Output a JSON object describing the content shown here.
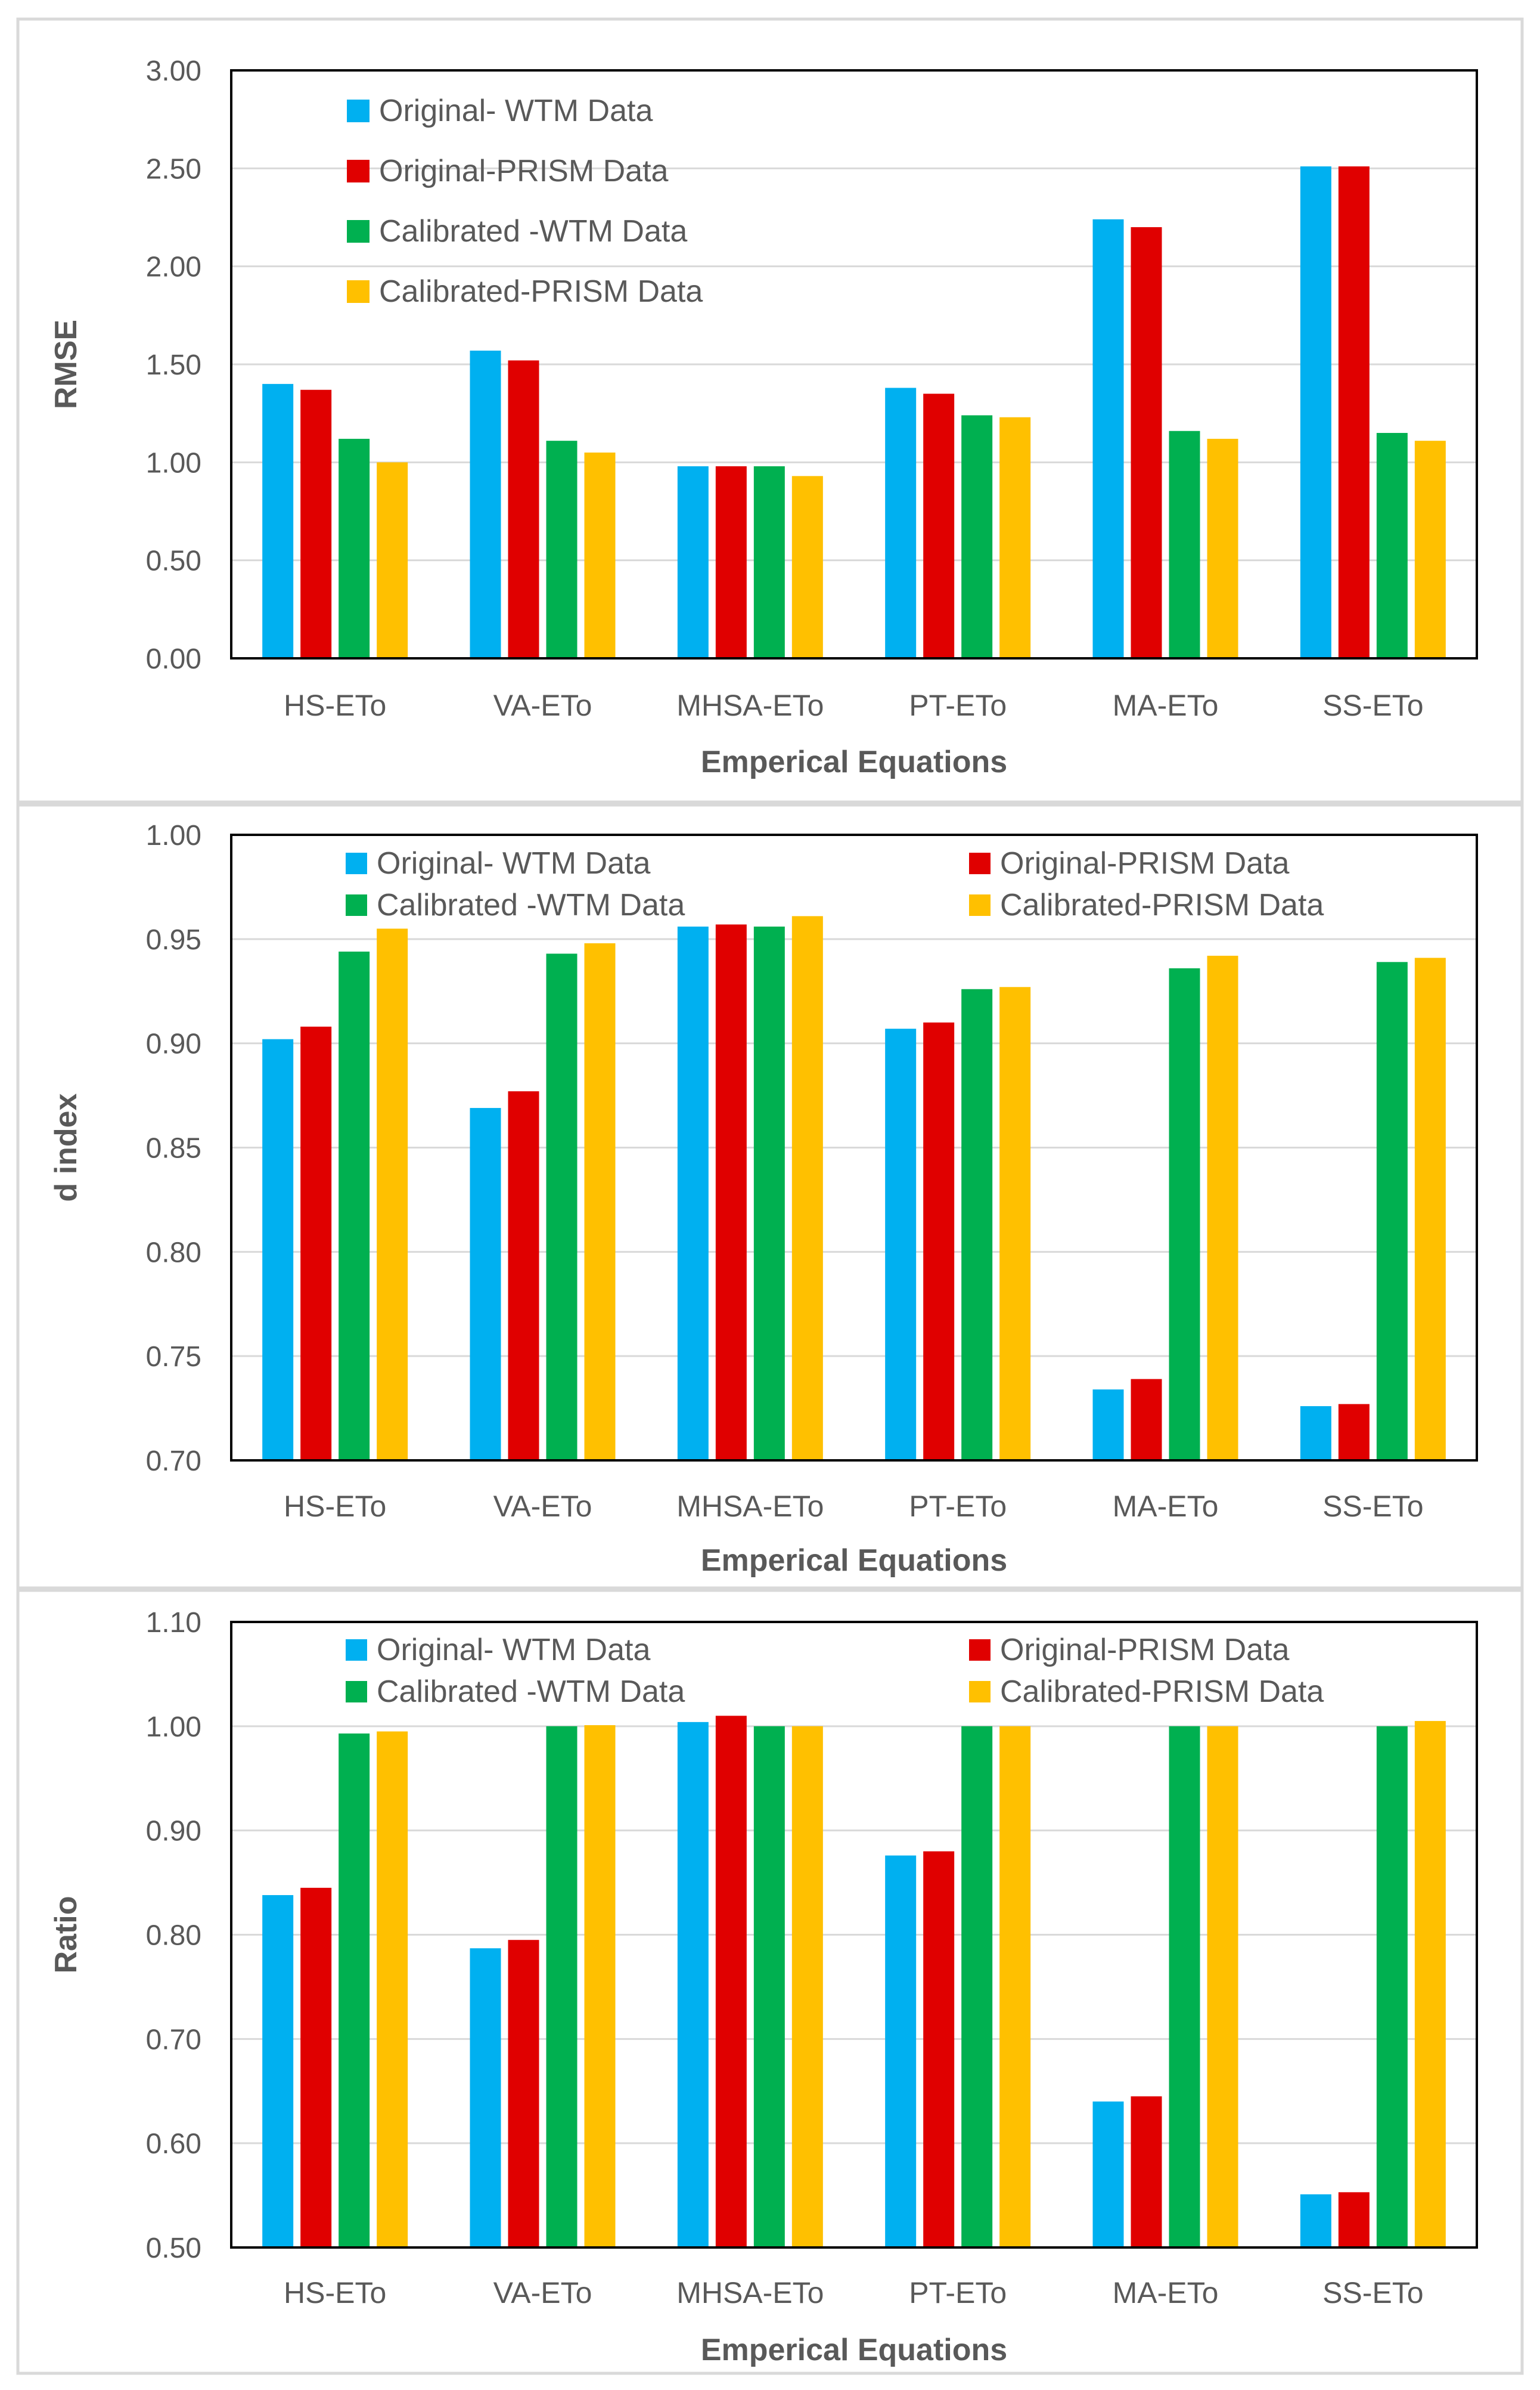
{
  "colors": {
    "original_wtm": "#00B0F0",
    "original_prism": "#E00000",
    "calibrated_wtm": "#00B050",
    "calibrated_prism": "#FFC000",
    "gridline": "#d9d9d9",
    "axis": "#000000",
    "panel_border": "#d9d9d9"
  },
  "chart_data": [
    {
      "type": "bar",
      "title": "",
      "xlabel": "Emperical Equations",
      "ylabel": "RMSE",
      "categories": [
        "HS-ETo",
        "VA-ETo",
        "MHSA-ETo",
        "PT-ETo",
        "MA-ETo",
        "SS-ETo"
      ],
      "ylim": [
        0,
        3
      ],
      "yticks": [
        "0.00",
        "0.50",
        "1.00",
        "1.50",
        "2.00",
        "2.50",
        "3.00"
      ],
      "grid": true,
      "legend_layout": "single-column",
      "series": [
        {
          "name": "Original- WTM Data",
          "color_key": "original_wtm",
          "values": [
            1.4,
            1.57,
            0.98,
            1.38,
            2.24,
            2.51
          ]
        },
        {
          "name": "Original-PRISM Data",
          "color_key": "original_prism",
          "values": [
            1.37,
            1.52,
            0.98,
            1.35,
            2.2,
            2.51
          ]
        },
        {
          "name": "Calibrated -WTM Data",
          "color_key": "calibrated_wtm",
          "values": [
            1.12,
            1.11,
            0.98,
            1.24,
            1.16,
            1.15
          ]
        },
        {
          "name": "Calibrated-PRISM Data",
          "color_key": "calibrated_prism",
          "values": [
            1.0,
            1.05,
            0.93,
            1.23,
            1.12,
            1.11
          ]
        }
      ]
    },
    {
      "type": "bar",
      "title": "",
      "xlabel": "Emperical Equations",
      "ylabel": "d index",
      "categories": [
        "HS-ETo",
        "VA-ETo",
        "MHSA-ETo",
        "PT-ETo",
        "MA-ETo",
        "SS-ETo"
      ],
      "ylim": [
        0.7,
        1.0
      ],
      "yticks": [
        "0.70",
        "0.75",
        "0.80",
        "0.85",
        "0.90",
        "0.95",
        "1.00"
      ],
      "grid": true,
      "legend_layout": "two-column",
      "series": [
        {
          "name": "Original- WTM Data",
          "color_key": "original_wtm",
          "values": [
            0.902,
            0.869,
            0.956,
            0.907,
            0.734,
            0.726
          ]
        },
        {
          "name": "Original-PRISM Data",
          "color_key": "original_prism",
          "values": [
            0.908,
            0.877,
            0.957,
            0.91,
            0.739,
            0.727
          ]
        },
        {
          "name": "Calibrated -WTM Data",
          "color_key": "calibrated_wtm",
          "values": [
            0.944,
            0.943,
            0.956,
            0.926,
            0.936,
            0.939
          ]
        },
        {
          "name": "Calibrated-PRISM Data",
          "color_key": "calibrated_prism",
          "values": [
            0.955,
            0.948,
            0.961,
            0.927,
            0.942,
            0.941
          ]
        }
      ]
    },
    {
      "type": "bar",
      "title": "",
      "xlabel": "Emperical Equations",
      "ylabel": "Ratio",
      "categories": [
        "HS-ETo",
        "VA-ETo",
        "MHSA-ETo",
        "PT-ETo",
        "MA-ETo",
        "SS-ETo"
      ],
      "ylim": [
        0.5,
        1.1
      ],
      "yticks": [
        "0.50",
        "0.60",
        "0.70",
        "0.80",
        "0.90",
        "1.00",
        "1.10"
      ],
      "grid": true,
      "legend_layout": "two-column",
      "series": [
        {
          "name": "Original- WTM Data",
          "color_key": "original_wtm",
          "values": [
            0.838,
            0.787,
            1.004,
            0.876,
            0.64,
            0.551
          ]
        },
        {
          "name": "Original-PRISM Data",
          "color_key": "original_prism",
          "values": [
            0.845,
            0.795,
            1.01,
            0.88,
            0.645,
            0.553
          ]
        },
        {
          "name": "Calibrated -WTM Data",
          "color_key": "calibrated_wtm",
          "values": [
            0.993,
            1.0,
            1.0,
            1.0,
            1.0,
            1.0
          ]
        },
        {
          "name": "Calibrated-PRISM Data",
          "color_key": "calibrated_prism",
          "values": [
            0.995,
            1.001,
            1.0,
            1.0,
            1.0,
            1.005
          ]
        }
      ]
    }
  ]
}
